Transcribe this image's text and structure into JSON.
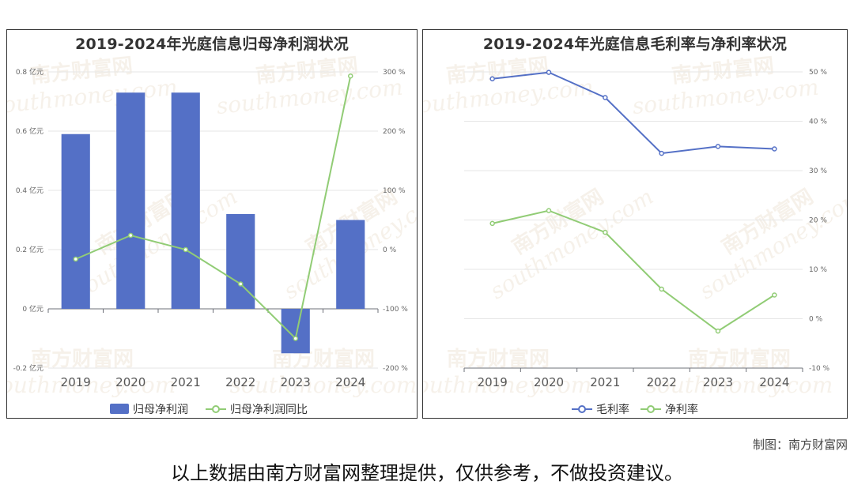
{
  "watermark": {
    "cn": "南方财富网",
    "en": "southmoney.com"
  },
  "chart_data": [
    {
      "type": "bar",
      "title": "2019-2024年光庭信息归母净利润状况",
      "categories": [
        "2019",
        "2020",
        "2021",
        "2022",
        "2023",
        "2024"
      ],
      "series": [
        {
          "name": "归母净利润",
          "kind": "bar",
          "axis": "left",
          "color": "#5470c6",
          "values": [
            0.59,
            0.73,
            0.73,
            0.32,
            -0.15,
            0.3
          ]
        },
        {
          "name": "归母净利润同比",
          "kind": "line",
          "axis": "right",
          "color": "#91cc75",
          "values": [
            -16,
            24,
            0,
            -58,
            -150,
            293
          ]
        }
      ],
      "left_axis": {
        "ticks": [
          "-0.2 亿元",
          "0 亿元",
          "0.2 亿元",
          "0.4 亿元",
          "0.6 亿元",
          "0.8 亿元"
        ],
        "ylim": [
          -0.2,
          0.8
        ]
      },
      "right_axis": {
        "ticks": [
          "-200 %",
          "-100 %",
          "0 %",
          "100 %",
          "200 %",
          "300 %"
        ],
        "ylim": [
          -200,
          300
        ]
      },
      "legend": "bottom",
      "grid": true
    },
    {
      "type": "line",
      "title": "2019-2024年光庭信息毛利率与净利率状况",
      "categories": [
        "2019",
        "2020",
        "2021",
        "2022",
        "2023",
        "2024"
      ],
      "series": [
        {
          "name": "毛利率",
          "color": "#5470c6",
          "values": [
            48.6,
            49.9,
            44.8,
            33.5,
            34.9,
            34.4
          ]
        },
        {
          "name": "净利率",
          "color": "#91cc75",
          "values": [
            19.3,
            21.9,
            17.5,
            6.0,
            -2.5,
            4.8
          ]
        }
      ],
      "right_axis": {
        "ticks": [
          "-10 %",
          "0 %",
          "10 %",
          "20 %",
          "30 %",
          "40 %",
          "50 %"
        ],
        "ylim": [
          -10,
          50
        ]
      },
      "legend": "bottom",
      "grid": true
    }
  ],
  "footer": {
    "credit": "制图：南方财富网",
    "disclaimer": "以上数据由南方财富网整理提供，仅供参考，不做投资建议。"
  }
}
